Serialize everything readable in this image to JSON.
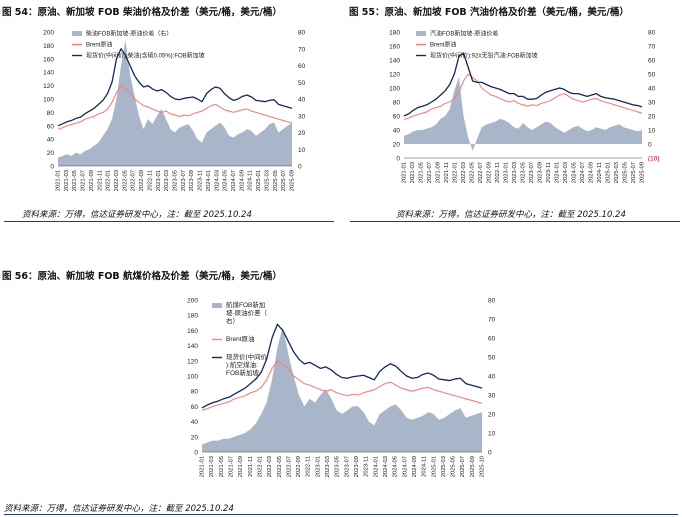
{
  "colors": {
    "spread_fill": "#a9b5c9",
    "brent_line": "#f08080",
    "product_line": "#14275c",
    "negative_label": "#c00000",
    "rule": "#1f3b73"
  },
  "chart1": {
    "title": "图 54：原油、新加坡 FOB 柴油价格及价差（美元/桶，美元/桶）",
    "source": "资料来源：万得，信达证券研发中心，注：截至 2025.10.24"
  },
  "chart2": {
    "title": "图 55：原油、新加坡 FOB 汽油价格及价差（美元/桶，美元/桶）",
    "source": "资料来源：万得，信达证券研发中心，注：截至 2025.10.24"
  },
  "chart3": {
    "title": "图 56：原油、新加坡 FOB 航煤价格及价差（美元/桶，美元/桶）",
    "source": "资料来源：万得，信达证券研发中心，注：截至 2025.10.24"
  },
  "chart_data": [
    {
      "type": "line",
      "name": "chart1",
      "x_ticks": [
        "2021-01",
        "2021-03",
        "2021-05",
        "2021-07",
        "2021-09",
        "2021-11",
        "2022-01",
        "2022-03",
        "2022-05",
        "2022-07",
        "2022-09",
        "2022-11",
        "2023-01",
        "2023-03",
        "2023-05",
        "2023-07",
        "2023-09",
        "2023-11",
        "2024-01",
        "2024-03",
        "2024-05",
        "2024-07",
        "2024-09",
        "2024-11",
        "2025-01",
        "2025-03",
        "2025-05",
        "2025-07",
        "2025-09"
      ],
      "ylim_left": [
        0,
        200
      ],
      "yticks_left": [
        0,
        20,
        40,
        60,
        80,
        100,
        120,
        140,
        160,
        180,
        200
      ],
      "ylim_right": [
        0,
        80
      ],
      "yticks_right": [
        0,
        10,
        20,
        30,
        40,
        50,
        60,
        70,
        80
      ],
      "legend": [
        "柴油FOB新加坡-原油价差（右）",
        "Brent原油",
        "现货价(中间价):柴油(含硫0.05%):FOB新加坡"
      ],
      "series": [
        {
          "name": "柴油FOB新加坡-原油价差（右）",
          "type": "area",
          "axis": "right",
          "values": [
            5,
            6,
            7,
            6,
            8,
            7,
            9,
            10,
            12,
            14,
            18,
            22,
            28,
            40,
            60,
            75,
            55,
            42,
            30,
            22,
            28,
            25,
            30,
            34,
            28,
            22,
            20,
            23,
            24,
            25,
            21,
            16,
            14,
            20,
            22,
            24,
            26,
            23,
            18,
            17,
            19,
            20,
            22,
            21,
            18,
            20,
            22,
            25,
            26,
            20,
            22,
            24,
            26
          ]
        },
        {
          "name": "Brent原油",
          "type": "line",
          "axis": "left",
          "values": [
            55,
            57,
            60,
            62,
            64,
            66,
            70,
            72,
            74,
            78,
            80,
            85,
            95,
            110,
            120,
            115,
            110,
            100,
            95,
            90,
            88,
            85,
            82,
            80,
            82,
            78,
            76,
            74,
            76,
            75,
            78,
            80,
            82,
            86,
            90,
            92,
            88,
            84,
            82,
            80,
            82,
            84,
            85,
            82,
            80,
            78,
            76,
            74,
            72,
            70,
            68,
            66,
            64
          ]
        },
        {
          "name": "现货价(中间价):柴油(含硫0.05%):FOB新加坡",
          "type": "line",
          "axis": "left",
          "values": [
            60,
            63,
            66,
            68,
            71,
            73,
            78,
            82,
            86,
            92,
            98,
            108,
            125,
            160,
            175,
            165,
            150,
            135,
            125,
            118,
            120,
            115,
            112,
            114,
            110,
            104,
            100,
            99,
            101,
            102,
            103,
            100,
            96,
            108,
            114,
            118,
            116,
            108,
            102,
            98,
            100,
            104,
            106,
            103,
            98,
            97,
            96,
            98,
            99,
            92,
            90,
            88,
            86
          ]
        }
      ]
    },
    {
      "type": "line",
      "name": "chart2",
      "x_ticks": [
        "2021-01",
        "2021-03",
        "2021-05",
        "2021-07",
        "2021-09",
        "2021-11",
        "2022-01",
        "2022-03",
        "2022-05",
        "2022-07",
        "2022-09",
        "2022-11",
        "2023-01",
        "2023-03",
        "2023-05",
        "2023-07",
        "2023-09",
        "2023-11",
        "2024-01",
        "2024-03",
        "2024-05",
        "2024-07",
        "2024-09",
        "2024-11",
        "2025-01",
        "2025-03",
        "2025-05",
        "2025-07",
        "2025-09"
      ],
      "ylim_left": [
        0,
        180
      ],
      "yticks_left": [
        0,
        20,
        40,
        60,
        80,
        100,
        120,
        140,
        160,
        180
      ],
      "ylim_right": [
        -10,
        80
      ],
      "yticks_right": [
        -10,
        0,
        10,
        20,
        30,
        40,
        50,
        60,
        70,
        80
      ],
      "y_right_tick_labels": [
        "(10)",
        "0",
        "10",
        "20",
        "30",
        "40",
        "50",
        "60",
        "70",
        "80"
      ],
      "legend": [
        "汽油FOB新加坡-原油价差",
        "Brent原油",
        "现货价(中间价):92#无铅汽油:FOB新加坡"
      ],
      "series": [
        {
          "name": "汽油FOB新加坡-原油价差",
          "type": "area",
          "axis": "right",
          "values": [
            6,
            7,
            9,
            10,
            10,
            11,
            12,
            14,
            18,
            20,
            25,
            38,
            48,
            20,
            5,
            -5,
            4,
            12,
            14,
            15,
            16,
            18,
            17,
            15,
            12,
            11,
            15,
            12,
            10,
            12,
            14,
            16,
            15,
            12,
            10,
            8,
            10,
            12,
            13,
            11,
            9,
            10,
            12,
            11,
            10,
            12,
            13,
            14,
            12,
            11,
            10,
            9,
            10
          ]
        },
        {
          "name": "Brent原油",
          "type": "line",
          "axis": "left",
          "values": [
            55,
            57,
            60,
            62,
            64,
            66,
            70,
            72,
            74,
            78,
            80,
            85,
            95,
            110,
            120,
            115,
            110,
            100,
            95,
            90,
            88,
            85,
            82,
            80,
            82,
            78,
            76,
            74,
            76,
            75,
            78,
            80,
            82,
            86,
            90,
            92,
            88,
            84,
            82,
            80,
            82,
            84,
            85,
            82,
            80,
            78,
            76,
            74,
            72,
            70,
            68,
            66,
            64
          ]
        },
        {
          "name": "现货价(中间价):92#无铅汽油:FOB新加坡",
          "type": "line",
          "axis": "left",
          "values": [
            60,
            63,
            68,
            72,
            74,
            76,
            80,
            84,
            90,
            96,
            105,
            120,
            145,
            150,
            130,
            110,
            108,
            108,
            105,
            102,
            100,
            98,
            95,
            92,
            92,
            88,
            88,
            84,
            84,
            85,
            90,
            94,
            96,
            98,
            100,
            98,
            94,
            92,
            92,
            90,
            88,
            90,
            92,
            88,
            86,
            85,
            84,
            82,
            80,
            78,
            76,
            75,
            73
          ]
        }
      ]
    },
    {
      "type": "line",
      "name": "chart3",
      "x_ticks": [
        "2021-01",
        "2021-03",
        "2021-05",
        "2021-07",
        "2021-09",
        "2021-11",
        "2022-01",
        "2022-03",
        "2022-05",
        "2022-07",
        "2022-09",
        "2022-11",
        "2023-01",
        "2023-03",
        "2023-05",
        "2023-07",
        "2023-09",
        "2023-11",
        "2024-01",
        "2024-03",
        "2024-05",
        "2024-07",
        "2024-09",
        "2024-11",
        "2025-01",
        "2025-03",
        "2025-05",
        "2025-07",
        "2025-09",
        "2025-10"
      ],
      "ylim_left": [
        0,
        200
      ],
      "yticks_left": [
        0,
        20,
        40,
        60,
        80,
        100,
        120,
        140,
        160,
        180,
        200
      ],
      "ylim_right": [
        0,
        80
      ],
      "yticks_right": [
        0,
        10,
        20,
        30,
        40,
        50,
        60,
        70,
        80
      ],
      "legend": [
        "航煤FOB新加坡-原油价差（右）",
        "Brent原油",
        "现货价(中间价):航空煤油:FOB新加坡"
      ],
      "series": [
        {
          "name": "航煤FOB新加坡-原油价差（右）",
          "type": "area",
          "axis": "right",
          "values": [
            4,
            5,
            6,
            6,
            7,
            7,
            8,
            9,
            10,
            12,
            15,
            20,
            26,
            38,
            55,
            66,
            52,
            40,
            30,
            24,
            28,
            26,
            30,
            33,
            28,
            22,
            20,
            22,
            24,
            24,
            21,
            16,
            14,
            20,
            22,
            24,
            25,
            22,
            18,
            17,
            18,
            19,
            21,
            20,
            17,
            18,
            20,
            22,
            23,
            18,
            19,
            20,
            21
          ]
        },
        {
          "name": "Brent原油",
          "type": "line",
          "axis": "left",
          "values": [
            55,
            57,
            60,
            62,
            64,
            66,
            70,
            72,
            74,
            78,
            80,
            85,
            95,
            110,
            120,
            115,
            110,
            100,
            95,
            90,
            88,
            85,
            82,
            80,
            82,
            78,
            76,
            74,
            76,
            75,
            78,
            80,
            82,
            86,
            90,
            92,
            88,
            84,
            82,
            80,
            82,
            84,
            85,
            82,
            80,
            78,
            76,
            74,
            72,
            70,
            68,
            66,
            64
          ]
        },
        {
          "name": "现货价(中间价):航空煤油:FOB新加坡",
          "type": "line",
          "axis": "left",
          "values": [
            58,
            62,
            65,
            67,
            70,
            72,
            76,
            80,
            84,
            90,
            96,
            105,
            122,
            150,
            168,
            160,
            146,
            132,
            122,
            116,
            118,
            114,
            110,
            112,
            108,
            102,
            98,
            97,
            99,
            100,
            101,
            98,
            95,
            106,
            112,
            116,
            113,
            106,
            100,
            97,
            98,
            102,
            104,
            101,
            96,
            95,
            94,
            96,
            97,
            90,
            88,
            86,
            84
          ]
        }
      ]
    }
  ]
}
